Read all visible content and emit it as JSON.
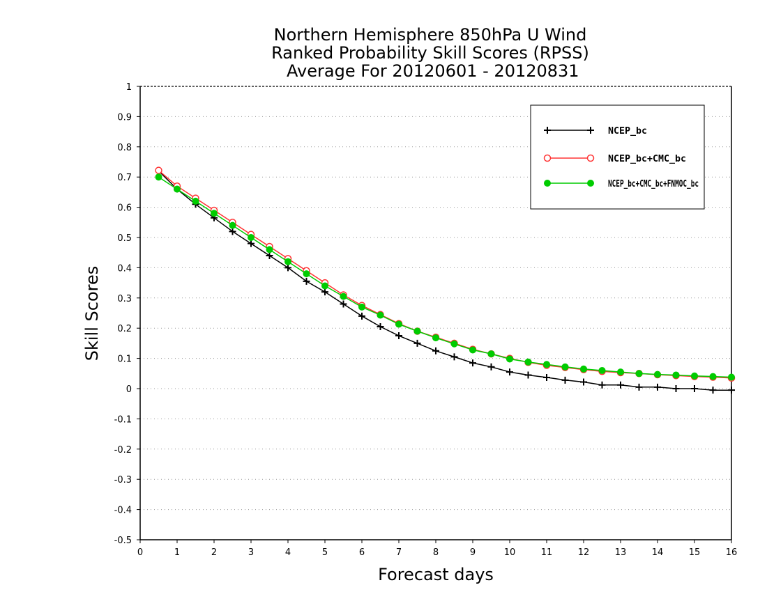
{
  "chart_data": {
    "type": "line",
    "title_lines": [
      "Northern Hemisphere 850hPa U Wind",
      "Ranked Probability Skill Scores (RPSS)",
      " Average For 20120601 - 20120831"
    ],
    "xlabel": "Forecast days",
    "ylabel": "Skill Scores",
    "xlim": [
      0,
      16
    ],
    "ylim": [
      -0.5,
      1
    ],
    "x_ticks": [
      "0",
      "1",
      "2",
      "3",
      "4",
      "5",
      "6",
      "7",
      "8",
      "9",
      "10",
      "11",
      "12",
      "13",
      "14",
      "15",
      "16"
    ],
    "y_ticks": [
      "1",
      "0.9",
      "0.8",
      "0.7",
      "0.6",
      "0.5",
      "0.4",
      "0.3",
      "0.2",
      "0.1",
      "0",
      "-0.1",
      "-0.2",
      "-0.3",
      "-0.4",
      "-0.5"
    ],
    "grid": true,
    "legend_position": "top-right",
    "x": [
      0.5,
      1,
      1.5,
      2,
      2.5,
      3,
      3.5,
      4,
      4.5,
      5,
      5.5,
      6,
      6.5,
      7,
      7.5,
      8,
      8.5,
      9,
      9.5,
      10,
      10.5,
      11,
      11.5,
      12,
      12.5,
      13,
      13.5,
      14,
      14.5,
      15,
      15.5,
      16
    ],
    "series": [
      {
        "name": "NCEP_bc",
        "color": "#000000",
        "marker": "plus",
        "values": [
          0.72,
          0.66,
          0.61,
          0.565,
          0.52,
          0.48,
          0.44,
          0.4,
          0.355,
          0.32,
          0.28,
          0.24,
          0.205,
          0.175,
          0.15,
          0.125,
          0.105,
          0.085,
          0.072,
          0.055,
          0.045,
          0.037,
          0.028,
          0.022,
          0.012,
          0.012,
          0.005,
          0.005,
          0.0,
          0.0,
          -0.005,
          -0.005
        ]
      },
      {
        "name": "NCEP_bc+CMC_bc",
        "color": "#ff3333",
        "marker": "open-circle",
        "values": [
          0.722,
          0.67,
          0.63,
          0.59,
          0.55,
          0.51,
          0.47,
          0.43,
          0.39,
          0.35,
          0.31,
          0.275,
          0.245,
          0.215,
          0.19,
          0.17,
          0.15,
          0.13,
          0.115,
          0.1,
          0.087,
          0.077,
          0.07,
          0.063,
          0.057,
          0.053,
          0.05,
          0.046,
          0.043,
          0.04,
          0.038,
          0.035
        ]
      },
      {
        "name": "NCEP_bc+CMC_bc+FNMOC_bc",
        "color": "#00cc00",
        "marker": "filled-circle",
        "values": [
          0.7,
          0.66,
          0.62,
          0.58,
          0.54,
          0.5,
          0.46,
          0.42,
          0.38,
          0.34,
          0.305,
          0.27,
          0.243,
          0.213,
          0.19,
          0.168,
          0.148,
          0.128,
          0.115,
          0.098,
          0.088,
          0.08,
          0.072,
          0.065,
          0.06,
          0.055,
          0.05,
          0.047,
          0.045,
          0.042,
          0.04,
          0.038
        ]
      }
    ]
  }
}
